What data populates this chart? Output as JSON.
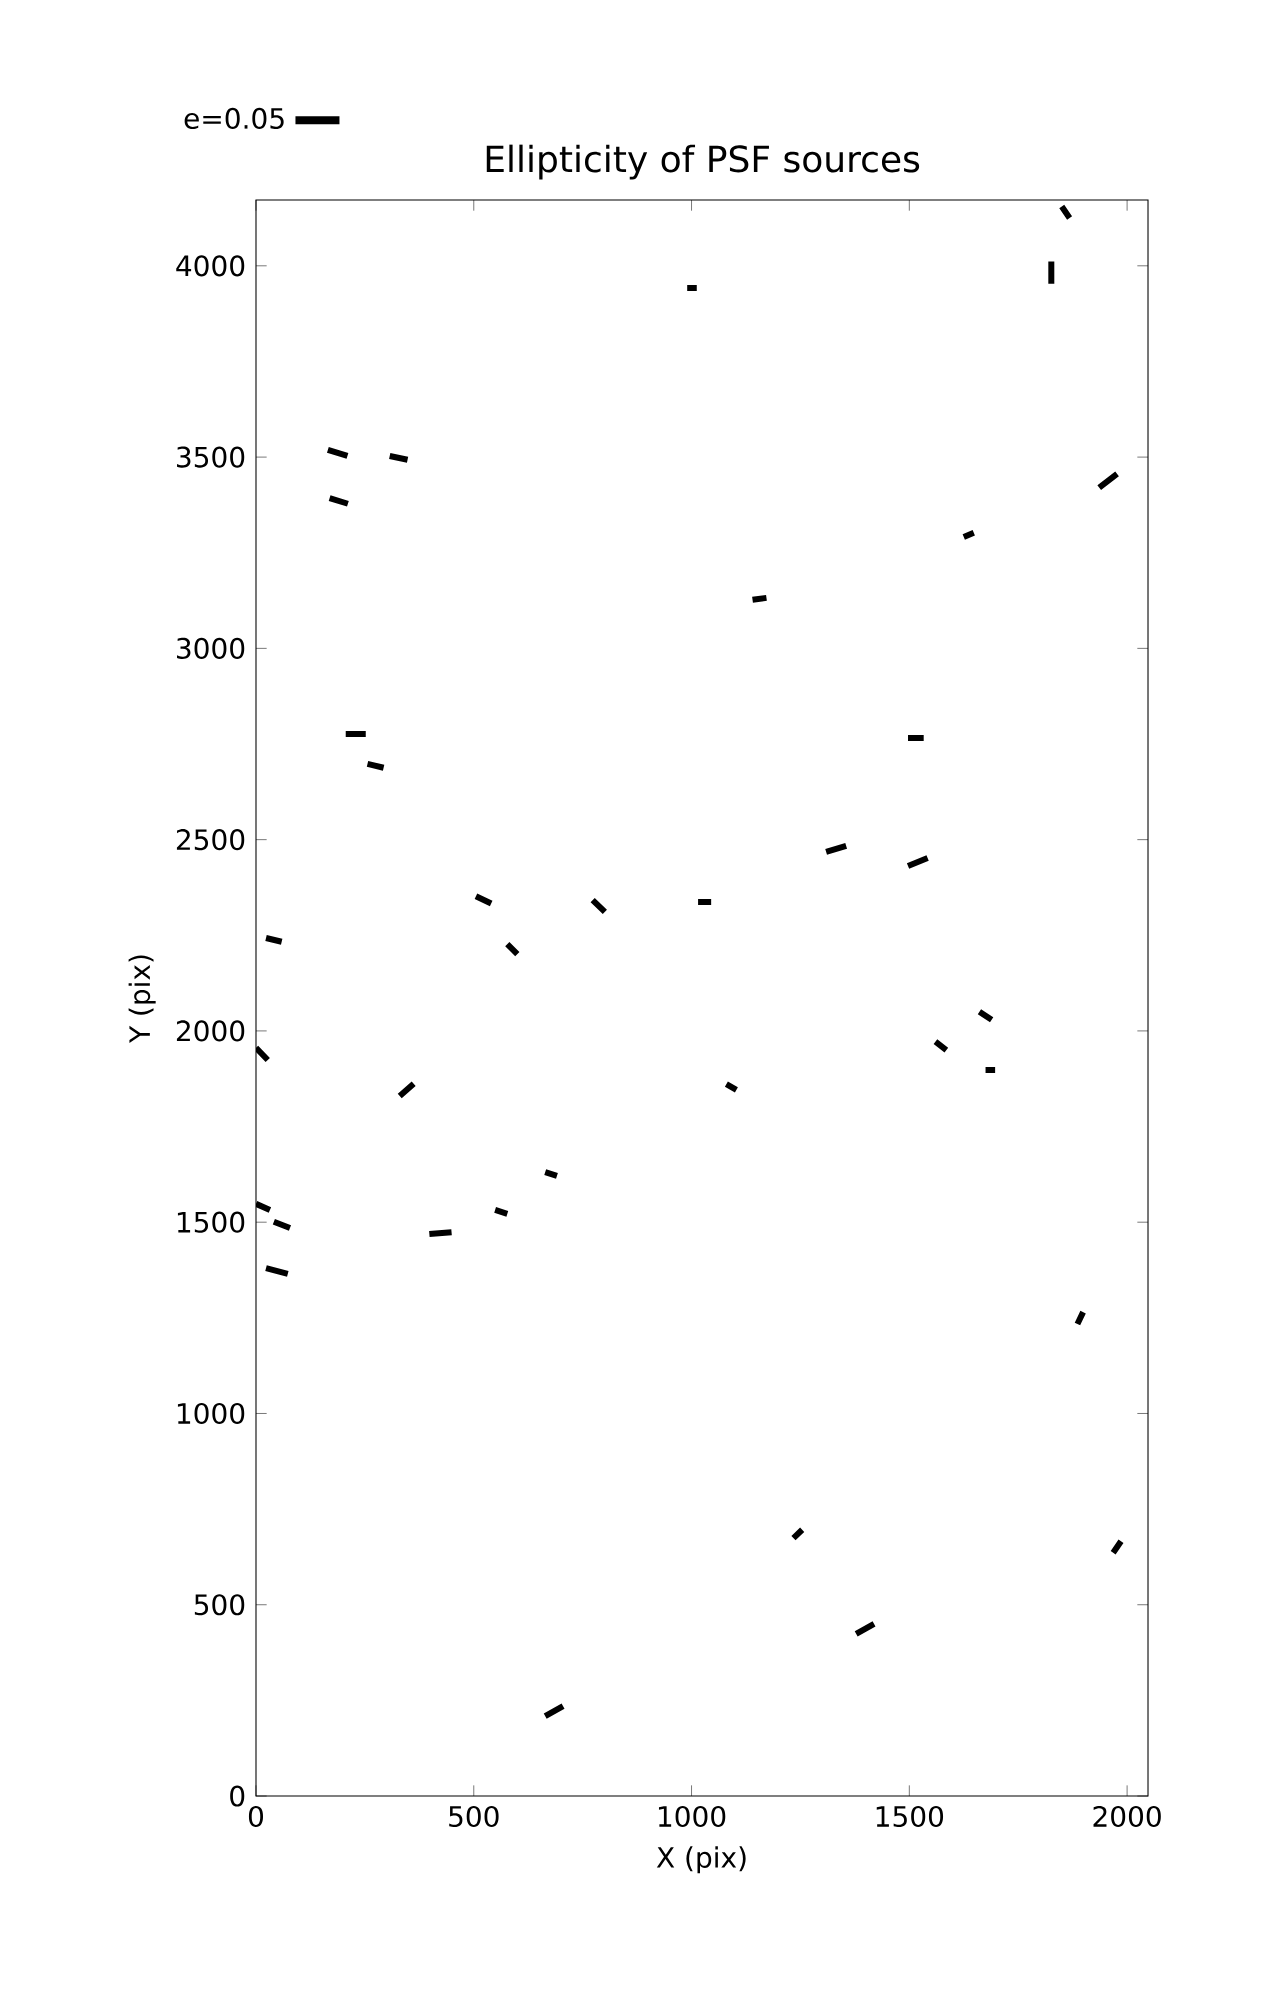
{
  "chart_data": {
    "type": "line",
    "title": "Ellipticity of PSF sources",
    "xlabel": "X (pix)",
    "ylabel": "Y (pix)",
    "xlim": [
      0,
      2048
    ],
    "ylim": [
      0,
      4172
    ],
    "xticks": [
      0,
      500,
      1000,
      1500,
      2000
    ],
    "yticks": [
      0,
      500,
      1000,
      1500,
      2000,
      2500,
      3000,
      3500,
      4000
    ],
    "grid": false,
    "legend": "top left",
    "marker": "none",
    "line_style": "solid",
    "series": [
      {
        "name": "e=0.05",
        "color": "#000000",
        "x": [
          165,
          210,
          null,
          307,
          348,
          null,
          169,
          211,
          null,
          206,
          252,
          null,
          256,
          293,
          null,
          0,
          27,
          null,
          23,
          59,
          null,
          330,
          362,
          null,
          0,
          32,
          null,
          41,
          78,
          null,
          23,
          73,
          null,
          398,
          449,
          null,
          549,
          577,
          null,
          664,
          691,
          null,
          505,
          540,
          null,
          577,
          600,
          null,
          773,
          801,
          null,
          1015,
          1045,
          null,
          1080,
          1103,
          null,
          990,
          1012,
          null,
          1140,
          1172,
          null,
          1309,
          1355,
          null,
          1497,
          1542,
          null,
          1497,
          1533,
          null,
          1625,
          1648,
          null,
          1560,
          1585,
          null,
          1661,
          1689,
          null,
          1675,
          1697,
          null,
          1826,
          1826,
          null,
          1850,
          1868,
          null,
          1936,
          1977,
          null,
          1886,
          1899,
          null,
          1968,
          1986,
          null,
          1234,
          1254,
          null,
          1378,
          1419,
          null,
          664,
          705
        ],
        "values": [
          3519,
          3503,
          null,
          3503,
          3493,
          null,
          3393,
          3378,
          null,
          2776,
          2776,
          null,
          2698,
          2688,
          null,
          1956,
          1924,
          null,
          2243,
          2233,
          null,
          1830,
          1862,
          null,
          1548,
          1532,
          null,
          1501,
          1485,
          null,
          1380,
          1365,
          null,
          1469,
          1474,
          null,
          1532,
          1522,
          null,
          1631,
          1621,
          null,
          2352,
          2333,
          null,
          2227,
          2201,
          null,
          2342,
          2311,
          null,
          2337,
          2337,
          null,
          1861,
          1846,
          null,
          3942,
          3942,
          null,
          3127,
          3132,
          null,
          2468,
          2484,
          null,
          2431,
          2452,
          null,
          2766,
          2766,
          null,
          3291,
          3302,
          null,
          1972,
          1950,
          null,
          2050,
          2029,
          null,
          1898,
          1898,
          null,
          4011,
          3953,
          null,
          4155,
          4125,
          null,
          3420,
          3456,
          null,
          1234,
          1265,
          null,
          636,
          666,
          null,
          674,
          696,
          null,
          424,
          450,
          null,
          209,
          235
        ]
      }
    ]
  }
}
